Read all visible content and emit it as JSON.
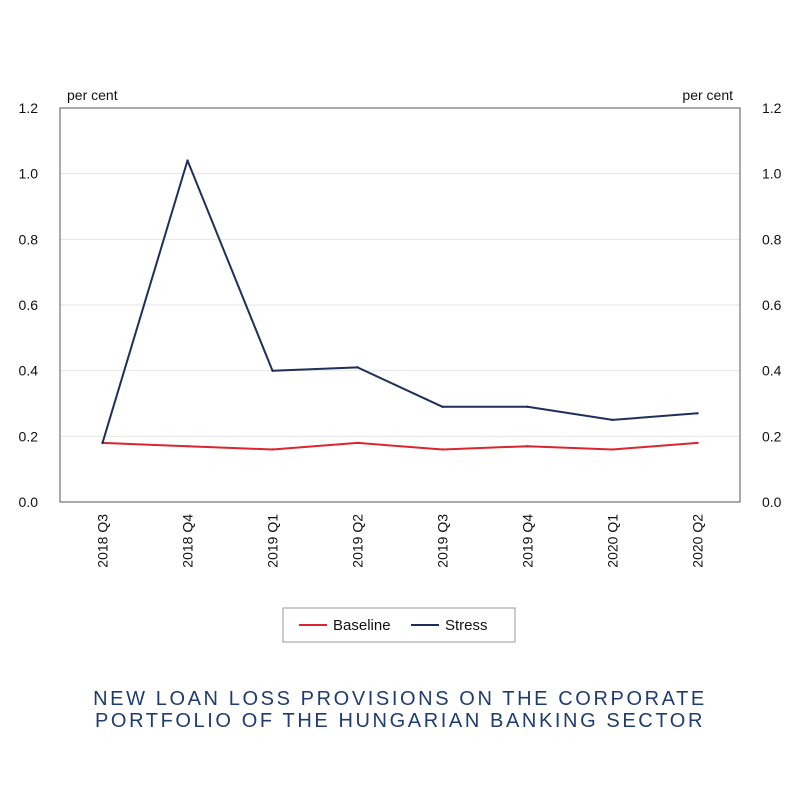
{
  "chart_data": {
    "type": "line",
    "categories": [
      "2018 Q3",
      "2018 Q4",
      "2019 Q1",
      "2019 Q2",
      "2019 Q3",
      "2019 Q4",
      "2020 Q1",
      "2020 Q2"
    ],
    "series": [
      {
        "name": "Baseline",
        "color": "#d9262f",
        "values": [
          0.18,
          0.17,
          0.16,
          0.18,
          0.16,
          0.17,
          0.16,
          0.18
        ]
      },
      {
        "name": "Stress",
        "color": "#1f2f5a",
        "values": [
          0.18,
          1.04,
          0.4,
          0.41,
          0.29,
          0.29,
          0.25,
          0.27
        ]
      }
    ],
    "ylim": [
      0.0,
      1.2
    ],
    "yticks": [
      "0.0",
      "0.2",
      "0.4",
      "0.6",
      "0.8",
      "1.0",
      "1.2"
    ],
    "ylabel_left": "per cent",
    "ylabel_right": "per cent",
    "grid": true,
    "legend_position": "bottom",
    "title": [
      "NEW LOAN LOSS PROVISIONS ON THE CORPORATE",
      "PORTFOLIO OF THE HUNGARIAN BANKING SECTOR"
    ]
  }
}
